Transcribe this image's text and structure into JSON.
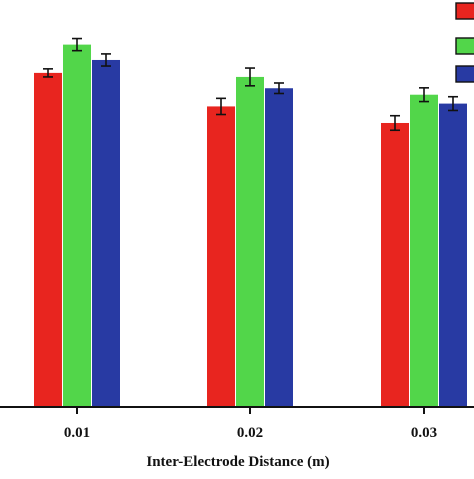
{
  "chart_data": {
    "type": "bar",
    "title": "",
    "xlabel": "Inter-Electrode Distance (m)",
    "ylabel": "",
    "categories": [
      "0.01",
      "0.02",
      "0.03"
    ],
    "ylim": [
      0,
      100
    ],
    "series": [
      {
        "color": "#e8251f",
        "values": [
          82.7,
          74.4,
          70.3
        ],
        "errors": [
          1.0,
          2.0,
          1.8
        ]
      },
      {
        "color": "#52d64a",
        "values": [
          89.7,
          81.7,
          77.3
        ],
        "errors": [
          1.5,
          2.2,
          1.7
        ]
      },
      {
        "color": "#283aa3",
        "values": [
          85.9,
          78.9,
          75.1
        ],
        "errors": [
          1.5,
          1.3,
          1.7
        ]
      }
    ],
    "legend": {
      "placement": "top-right",
      "entries": [
        "",
        "",
        ""
      ]
    },
    "grid": false
  }
}
